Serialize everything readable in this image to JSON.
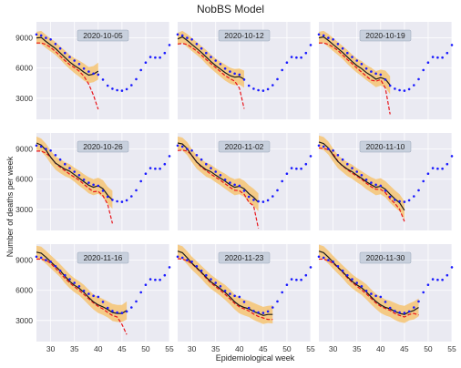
{
  "title": "NobBS Model",
  "ylabel": "Number of deaths per week",
  "xlabel": "Epidemiological week",
  "chart_data": {
    "type": "line",
    "layout": "3x3 grid of panels with shared axes",
    "xlim": [
      27,
      55
    ],
    "ylim": [
      900,
      10600
    ],
    "xticks": [
      30,
      35,
      40,
      45,
      50,
      55
    ],
    "yticks": [
      3000,
      6000,
      9000
    ],
    "grid": true,
    "colors": {
      "observed": "#1a1aff",
      "nowcast": "#1a1a1a",
      "interval": "#f5c77a",
      "reported": "#e8141a",
      "panel_bg": "#eaeaf2",
      "badge_bg": "#c8d0dd"
    },
    "observed": {
      "x": [
        27,
        28,
        29,
        30,
        31,
        32,
        33,
        34,
        35,
        36,
        37,
        38,
        39,
        40,
        41,
        42,
        43,
        44,
        45,
        46,
        47,
        48,
        49,
        50,
        51,
        52,
        53,
        54,
        55
      ],
      "y": [
        9350,
        9250,
        9000,
        8850,
        8400,
        7950,
        7500,
        7100,
        6750,
        6400,
        5950,
        5650,
        5450,
        5350,
        4850,
        4250,
        3950,
        3800,
        3750,
        3900,
        4300,
        4900,
        5800,
        6550,
        7100,
        7050,
        7050,
        7500,
        8300
      ]
    },
    "panels": [
      {
        "label": "2020-10-05",
        "end": 40,
        "nowcast": [
          9000,
          9050,
          8650,
          8300,
          7950,
          7500,
          7050,
          6600,
          6250,
          5950,
          5600,
          5300,
          5400,
          5700
        ],
        "half_band": [
          600,
          650,
          650,
          650,
          650,
          650,
          700,
          700,
          750,
          800,
          850,
          800,
          800,
          850
        ],
        "reported": [
          8500,
          8500,
          8350,
          8050,
          7650,
          7200,
          6750,
          6350,
          6050,
          5700,
          5200,
          4400,
          3300,
          1900
        ]
      },
      {
        "label": "2020-10-12",
        "end": 41,
        "nowcast": [
          8900,
          9100,
          8750,
          8350,
          7950,
          7550,
          7100,
          6650,
          6250,
          5900,
          5550,
          5250,
          5100,
          5150,
          4900
        ],
        "half_band": [
          600,
          600,
          650,
          650,
          650,
          650,
          700,
          700,
          700,
          750,
          800,
          800,
          800,
          800,
          850
        ],
        "reported": [
          8400,
          8450,
          8350,
          8050,
          7700,
          7300,
          6850,
          6450,
          6050,
          5650,
          5250,
          4950,
          4700,
          4000,
          1950
        ]
      },
      {
        "label": "2020-10-19",
        "end": 42,
        "nowcast": [
          9000,
          9100,
          8750,
          8350,
          7950,
          7550,
          7100,
          6650,
          6250,
          5950,
          5550,
          5250,
          4900,
          5050,
          4900,
          4300
        ],
        "half_band": [
          600,
          600,
          650,
          650,
          650,
          650,
          700,
          700,
          700,
          750,
          750,
          800,
          800,
          800,
          850,
          900
        ],
        "reported": [
          8500,
          8500,
          8350,
          8100,
          7750,
          7300,
          6850,
          6450,
          6000,
          5600,
          5200,
          4800,
          4700,
          4850,
          4000,
          1400
        ]
      },
      {
        "label": "2020-10-26",
        "end": 43,
        "nowcast": [
          9600,
          9400,
          8900,
          8200,
          7600,
          7300,
          7000,
          6800,
          6450,
          6100,
          5750,
          5400,
          5200,
          5350,
          5050,
          4400,
          3950
        ],
        "half_band": [
          650,
          650,
          650,
          650,
          650,
          700,
          700,
          700,
          700,
          750,
          750,
          800,
          800,
          800,
          850,
          850,
          900
        ],
        "reported": [
          8800,
          8800,
          8600,
          8200,
          7600,
          7200,
          6850,
          6500,
          6200,
          5900,
          5500,
          5100,
          4750,
          4800,
          4350,
          3500,
          1600
        ]
      },
      {
        "label": "2020-11-02",
        "end": 44,
        "nowcast": [
          9600,
          9500,
          9050,
          8350,
          7700,
          7300,
          6950,
          6750,
          6400,
          6100,
          5800,
          5450,
          5200,
          5300,
          5050,
          4550,
          4200,
          3700
        ],
        "half_band": [
          650,
          650,
          650,
          650,
          650,
          650,
          700,
          700,
          700,
          700,
          750,
          750,
          800,
          800,
          800,
          850,
          850,
          900
        ],
        "reported": [
          8850,
          8900,
          8800,
          8400,
          7700,
          7200,
          6850,
          6500,
          6200,
          5900,
          5550,
          5200,
          4900,
          4850,
          4500,
          3700,
          3350,
          1100
        ]
      },
      {
        "label": "2020-11-10",
        "end": 45,
        "nowcast": [
          9700,
          9550,
          9100,
          8400,
          7750,
          7350,
          7000,
          6750,
          6400,
          6100,
          5750,
          5450,
          5200,
          5300,
          5000,
          4500,
          4050,
          3650,
          2900
        ],
        "half_band": [
          650,
          650,
          650,
          650,
          650,
          650,
          700,
          700,
          700,
          700,
          750,
          750,
          800,
          800,
          800,
          850,
          850,
          850,
          900
        ],
        "reported": [
          9100,
          9050,
          8950,
          8550,
          7800,
          7300,
          6950,
          6600,
          6300,
          6000,
          5600,
          5250,
          5000,
          5000,
          4650,
          4050,
          3600,
          3000,
          1800
        ]
      },
      {
        "label": "2020-11-16",
        "end": 46,
        "nowcast": [
          9800,
          9700,
          9300,
          8850,
          8400,
          7950,
          7400,
          6900,
          6500,
          6200,
          5800,
          5300,
          4850,
          4550,
          4350,
          4100,
          3800,
          3700,
          3700,
          4000
        ],
        "half_band": [
          650,
          650,
          650,
          650,
          650,
          650,
          700,
          700,
          700,
          700,
          750,
          750,
          750,
          800,
          800,
          800,
          850,
          850,
          850,
          900
        ],
        "reported": [
          9100,
          9100,
          9000,
          8700,
          8200,
          7700,
          7200,
          6750,
          6350,
          6000,
          5600,
          5150,
          4750,
          4400,
          4150,
          3800,
          3500,
          3350,
          2600,
          1600
        ]
      },
      {
        "label": "2020-11-23",
        "end": 47,
        "nowcast": [
          9900,
          9750,
          9250,
          8700,
          8250,
          7800,
          7300,
          6850,
          6500,
          6150,
          5800,
          5350,
          4850,
          4500,
          4300,
          4150,
          3900,
          3700,
          3500,
          3600,
          3600
        ],
        "half_band": [
          650,
          650,
          650,
          650,
          650,
          650,
          700,
          700,
          700,
          700,
          750,
          750,
          750,
          800,
          800,
          800,
          850,
          850,
          850,
          850,
          900
        ],
        "reported": [
          9150,
          9100,
          8950,
          8650,
          8200,
          7750,
          7200,
          6750,
          6350,
          6000,
          5600,
          5150,
          4700,
          4350,
          4150,
          3950,
          3650,
          3400,
          3250,
          3100,
          3100
        ]
      },
      {
        "label": "2020-11-30",
        "end": 48,
        "nowcast": [
          9900,
          9750,
          9300,
          8800,
          8300,
          7850,
          7350,
          6900,
          6550,
          6250,
          5850,
          5350,
          4900,
          4550,
          4300,
          4150,
          3900,
          3700,
          3600,
          3850,
          4000,
          4300
        ],
        "half_band": [
          650,
          650,
          650,
          650,
          650,
          650,
          700,
          700,
          700,
          700,
          750,
          750,
          750,
          800,
          800,
          800,
          850,
          850,
          850,
          850,
          900,
          900
        ],
        "reported": [
          9100,
          9100,
          8950,
          8700,
          8250,
          7800,
          7250,
          6800,
          6400,
          6050,
          5650,
          5200,
          4750,
          4400,
          4200,
          4000,
          3700,
          3500,
          3350,
          3600,
          3700,
          3550
        ]
      }
    ]
  }
}
